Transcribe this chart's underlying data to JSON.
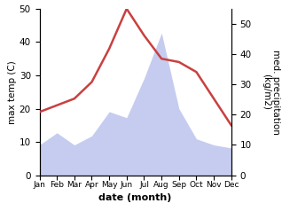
{
  "months": [
    "Jan",
    "Feb",
    "Mar",
    "Apr",
    "May",
    "Jun",
    "Jul",
    "Aug",
    "Sep",
    "Oct",
    "Nov",
    "Dec"
  ],
  "month_indices": [
    0,
    1,
    2,
    3,
    4,
    5,
    6,
    7,
    8,
    9,
    10,
    11
  ],
  "temperature": [
    19,
    21,
    23,
    28,
    38,
    50,
    42,
    35,
    34,
    31,
    23,
    15
  ],
  "precipitation": [
    10,
    14,
    10,
    13,
    21,
    19,
    32,
    47,
    22,
    12,
    10,
    9
  ],
  "temp_color": "#c94040",
  "precip_fill_color": "#c5ccf0",
  "temp_ylim": [
    0,
    50
  ],
  "precip_ylim": [
    0,
    55
  ],
  "temp_yticks": [
    0,
    10,
    20,
    30,
    40,
    50
  ],
  "precip_yticks": [
    0,
    10,
    20,
    30,
    40,
    50
  ],
  "xlabel": "date (month)",
  "ylabel_left": "max temp (C)",
  "ylabel_right": "med. precipitation\n(kg/m2)",
  "figsize": [
    3.18,
    2.47
  ],
  "dpi": 100
}
